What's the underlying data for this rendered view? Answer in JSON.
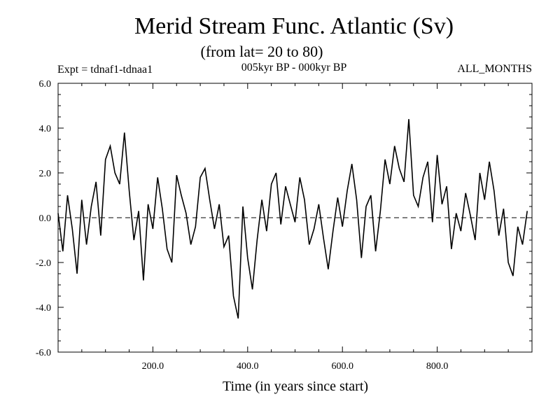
{
  "chart_data": {
    "type": "line",
    "title": "Merid Stream Func. Atlantic (Sv)",
    "subtitle": "(from lat= 20 to 80)",
    "expt_label": "Expt = tdnaf1-tdnaa1",
    "period_label": "005kyr BP - 000kyr BP",
    "months_label": "ALL_MONTHS",
    "xlabel": "Time (in years since start)",
    "ylabel": "",
    "xlim": [
      0,
      1000
    ],
    "ylim": [
      -6,
      6
    ],
    "x_ticks": [
      200,
      400,
      600,
      800
    ],
    "x_tick_labels": [
      "200.0",
      "400.0",
      "600.0",
      "800.0"
    ],
    "y_ticks": [
      -6,
      -4,
      -2,
      0,
      2,
      4,
      6
    ],
    "y_tick_labels": [
      "-6.0",
      "-4.0",
      "-2.0",
      "0.0",
      "2.0",
      "4.0",
      "6.0"
    ],
    "zero_line": "dashed",
    "series": [
      {
        "color": "#000000",
        "x_step": 10,
        "values": [
          0.2,
          -1.5,
          1.0,
          -0.5,
          -2.5,
          0.8,
          -1.2,
          0.5,
          1.6,
          -0.8,
          2.6,
          3.2,
          2.0,
          1.5,
          3.8,
          1.2,
          -1.0,
          0.3,
          -2.8,
          0.6,
          -0.5,
          1.8,
          0.4,
          -1.4,
          -2.0,
          1.9,
          1.0,
          0.2,
          -1.2,
          -0.4,
          1.8,
          2.2,
          0.8,
          -0.5,
          0.6,
          -1.3,
          -0.8,
          -3.5,
          -4.5,
          0.5,
          -1.8,
          -3.2,
          -1.0,
          0.8,
          -0.6,
          1.5,
          2.0,
          -0.3,
          1.4,
          0.6,
          -0.2,
          1.8,
          0.8,
          -1.2,
          -0.5,
          0.6,
          -0.9,
          -2.3,
          -0.6,
          0.9,
          -0.4,
          1.2,
          2.4,
          0.8,
          -1.8,
          0.5,
          1.0,
          -1.5,
          0.3,
          2.6,
          1.5,
          3.2,
          2.2,
          1.6,
          4.4,
          1.0,
          0.5,
          1.8,
          2.5,
          -0.2,
          2.8,
          0.6,
          1.4,
          -1.4,
          0.2,
          -0.6,
          1.1,
          0.1,
          -1.0,
          2.0,
          0.8,
          2.5,
          1.2,
          -0.8,
          0.4,
          -2.0,
          -2.6,
          -0.4,
          -1.2,
          0.3
        ]
      }
    ]
  }
}
